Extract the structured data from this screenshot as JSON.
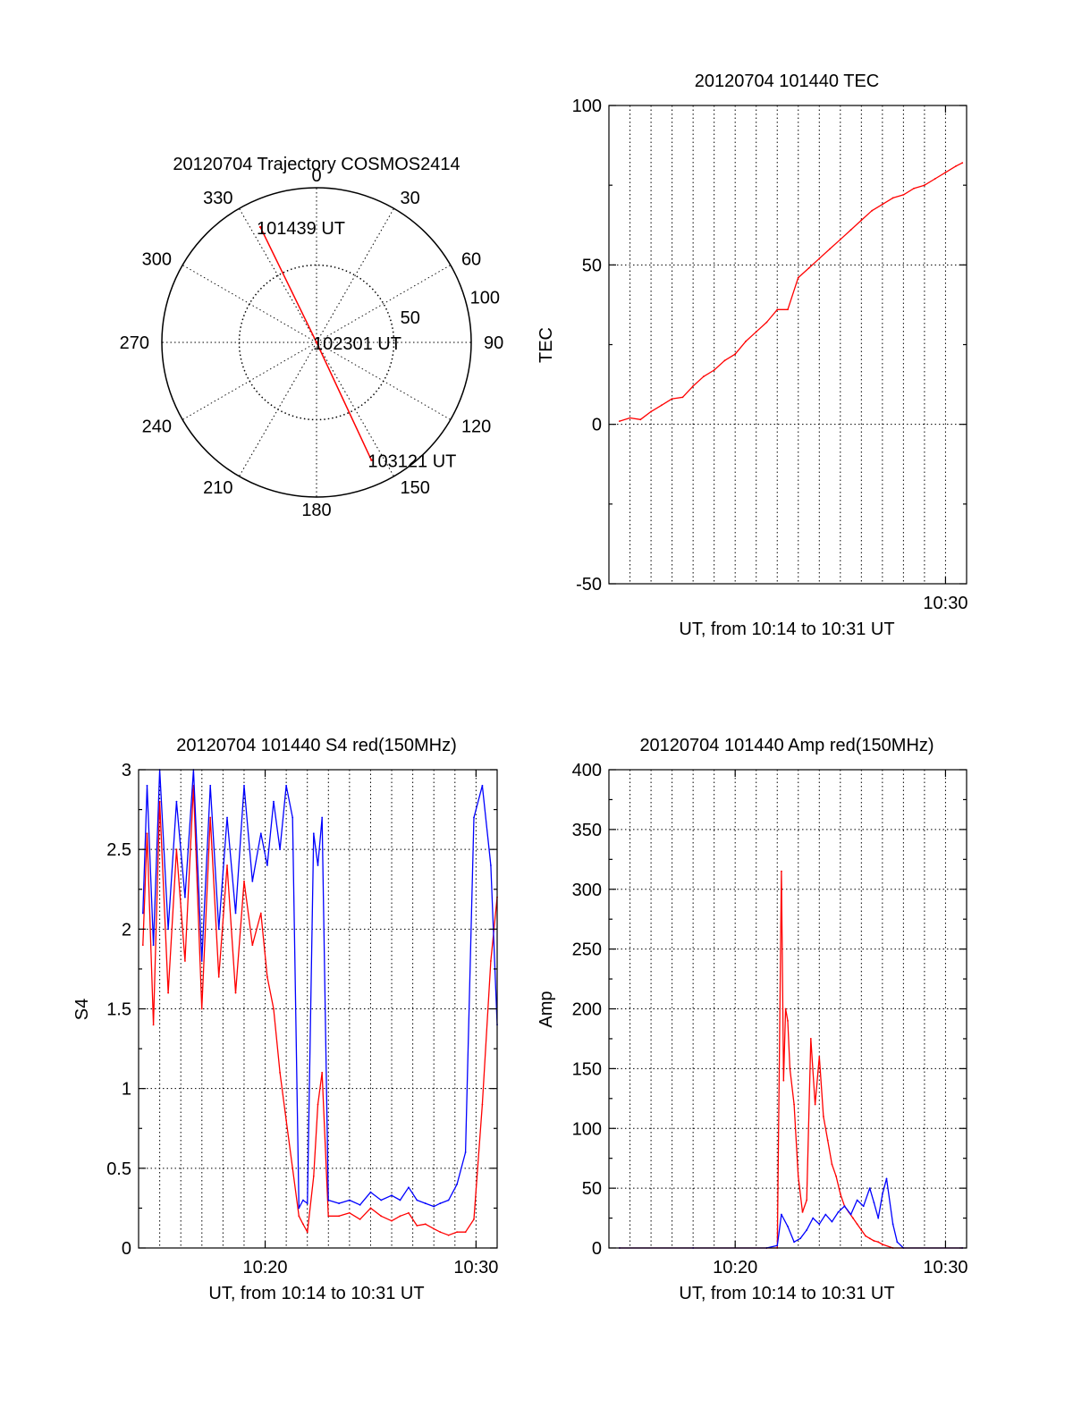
{
  "colors": {
    "red_series": "#ff0000",
    "blue_series": "#0000ff",
    "axes": "#000000"
  },
  "chart_data": [
    {
      "id": "trajectory",
      "type": "polar",
      "title": "20120704 Trajectory COSMOS2414",
      "angle_labels": [
        "0",
        "30",
        "60",
        "90",
        "120",
        "150",
        "180",
        "210",
        "240",
        "270",
        "300",
        "330"
      ],
      "radial_ticks": [
        50,
        100
      ],
      "radial_range": [
        0,
        100
      ],
      "grid": true,
      "series": [
        {
          "color": "#ff0000",
          "points": [
            {
              "azimuth": 334,
              "radius": 83,
              "time": "101439 UT"
            },
            {
              "azimuth": 0,
              "radius": 0,
              "time": "102301 UT"
            },
            {
              "azimuth": 155,
              "radius": 84,
              "time": "103121 UT"
            }
          ]
        }
      ]
    },
    {
      "id": "tec",
      "type": "line",
      "title": "20120704 101440 TEC",
      "xlabel": "UT, from 10:14 to 10:31 UT",
      "ylabel": "TEC",
      "xlim": [
        10.2333,
        10.5167
      ],
      "ylim": [
        -50,
        100
      ],
      "ytick_labels": [
        "-50",
        "0",
        "50",
        "100"
      ],
      "xtick_labels": [
        "10:30"
      ],
      "grid": true,
      "series": [
        {
          "color": "#ff0000",
          "x": [
            10.2417,
            10.25,
            10.2583,
            10.2667,
            10.275,
            10.2833,
            10.2917,
            10.3,
            10.3083,
            10.3167,
            10.325,
            10.3333,
            10.3417,
            10.35,
            10.3583,
            10.3667,
            10.375,
            10.3833,
            10.3917,
            10.4,
            10.4083,
            10.4167,
            10.425,
            10.4333,
            10.4417,
            10.45,
            10.4583,
            10.4667,
            10.475,
            10.4833,
            10.4917,
            10.5,
            10.5083,
            10.5133
          ],
          "y": [
            1,
            2,
            1.5,
            4,
            6,
            8,
            8.5,
            12,
            15,
            17,
            20,
            22,
            26,
            29,
            32,
            36,
            36,
            46,
            49,
            52,
            55,
            58,
            61,
            64,
            67,
            69,
            71,
            72,
            74,
            75,
            77,
            79,
            81,
            82
          ]
        }
      ]
    },
    {
      "id": "s4",
      "type": "line",
      "title": "20120704 101440 S4 red(150MHz)",
      "xlabel": "UT, from 10:14 to 10:31 UT",
      "ylabel": "S4",
      "xlim": [
        10.2333,
        10.5167
      ],
      "ylim": [
        0,
        3
      ],
      "ytick_labels": [
        "0",
        "0.5",
        "1",
        "1.5",
        "2",
        "2.5",
        "3"
      ],
      "xtick_labels": [
        "10:20",
        "10:30"
      ],
      "grid": true,
      "series": [
        {
          "color": "#ff0000",
          "x": [
            10.2367,
            10.24,
            10.245,
            10.25,
            10.2567,
            10.2633,
            10.27,
            10.2767,
            10.2833,
            10.29,
            10.2967,
            10.3033,
            10.31,
            10.3167,
            10.3233,
            10.33,
            10.335,
            10.34,
            10.345,
            10.35,
            10.355,
            10.36,
            10.3633,
            10.3667,
            10.3717,
            10.375,
            10.3783,
            10.3833,
            10.3917,
            10.4,
            10.4083,
            10.4167,
            10.425,
            10.4333,
            10.44,
            10.4467,
            10.4533,
            10.46,
            10.4667,
            10.4717,
            10.4783,
            10.485,
            10.4917,
            10.4983,
            10.505,
            10.5117,
            10.5167
          ],
          "y": [
            1.9,
            2.6,
            1.4,
            2.8,
            1.6,
            2.5,
            1.8,
            2.9,
            1.5,
            2.7,
            1.7,
            2.4,
            1.6,
            2.3,
            1.9,
            2.1,
            1.7,
            1.5,
            1.1,
            0.8,
            0.5,
            0.2,
            0.15,
            0.1,
            0.45,
            0.9,
            1.1,
            0.2,
            0.2,
            0.22,
            0.18,
            0.25,
            0.2,
            0.17,
            0.2,
            0.22,
            0.14,
            0.15,
            0.12,
            0.1,
            0.08,
            0.1,
            0.1,
            0.18,
            0.9,
            1.8,
            2.2
          ]
        },
        {
          "color": "#0000ff",
          "x": [
            10.2367,
            10.24,
            10.245,
            10.25,
            10.2567,
            10.2633,
            10.27,
            10.2767,
            10.2833,
            10.29,
            10.2967,
            10.3033,
            10.31,
            10.3167,
            10.3233,
            10.33,
            10.335,
            10.34,
            10.345,
            10.35,
            10.355,
            10.36,
            10.3633,
            10.3667,
            10.3717,
            10.375,
            10.3783,
            10.3833,
            10.3917,
            10.4,
            10.4083,
            10.4167,
            10.425,
            10.4333,
            10.44,
            10.4467,
            10.4533,
            10.46,
            10.4667,
            10.4717,
            10.4783,
            10.485,
            10.4917,
            10.4983,
            10.505,
            10.5117,
            10.5167
          ],
          "y": [
            2.1,
            2.9,
            1.9,
            3.0,
            2.0,
            2.8,
            2.2,
            3.0,
            1.8,
            2.9,
            2.0,
            2.7,
            2.1,
            2.9,
            2.3,
            2.6,
            2.4,
            2.8,
            2.5,
            2.9,
            2.7,
            0.25,
            0.3,
            0.28,
            2.6,
            2.4,
            2.7,
            0.3,
            0.28,
            0.3,
            0.27,
            0.35,
            0.3,
            0.33,
            0.3,
            0.38,
            0.3,
            0.28,
            0.26,
            0.28,
            0.3,
            0.4,
            0.6,
            2.7,
            2.9,
            2.4,
            1.4
          ]
        }
      ]
    },
    {
      "id": "amp",
      "type": "line",
      "title": "20120704 101440 Amp red(150MHz)",
      "xlabel": "UT, from 10:14 to 10:31 UT",
      "ylabel": "Amp",
      "xlim": [
        10.2333,
        10.5167
      ],
      "ylim": [
        0,
        400
      ],
      "ytick_labels": [
        "0",
        "50",
        "100",
        "150",
        "200",
        "250",
        "300",
        "350",
        "400"
      ],
      "xtick_labels": [
        "10:20",
        "10:30"
      ],
      "grid": true,
      "series": [
        {
          "color": "#ff0000",
          "x": [
            10.2417,
            10.3,
            10.3583,
            10.3667,
            10.37,
            10.3717,
            10.3733,
            10.375,
            10.3767,
            10.38,
            10.3833,
            10.3867,
            10.39,
            10.3933,
            10.3967,
            10.4,
            10.4033,
            10.4067,
            10.41,
            10.4133,
            10.4167,
            10.42,
            10.4233,
            10.4267,
            10.43,
            10.4333,
            10.4367,
            10.44,
            10.4433,
            10.4467,
            10.45,
            10.4583,
            10.4667,
            10.5133
          ],
          "y": [
            0,
            0,
            0,
            0,
            315,
            140,
            200,
            190,
            150,
            120,
            60,
            30,
            40,
            175,
            120,
            160,
            110,
            90,
            70,
            60,
            45,
            35,
            30,
            25,
            20,
            15,
            10,
            8,
            6,
            5,
            3,
            0,
            0,
            0
          ]
        },
        {
          "color": "#0000ff",
          "x": [
            10.2417,
            10.3,
            10.3583,
            10.3667,
            10.37,
            10.375,
            10.38,
            10.385,
            10.39,
            10.395,
            10.4,
            10.405,
            10.41,
            10.415,
            10.42,
            10.425,
            10.43,
            10.435,
            10.44,
            10.4433,
            10.4467,
            10.45,
            10.4533,
            10.4583,
            10.4617,
            10.4667,
            10.5133
          ],
          "y": [
            0,
            0,
            0,
            2,
            28,
            18,
            5,
            8,
            15,
            25,
            20,
            28,
            22,
            30,
            35,
            28,
            40,
            35,
            50,
            38,
            25,
            45,
            58,
            20,
            5,
            0,
            0
          ]
        }
      ]
    }
  ]
}
